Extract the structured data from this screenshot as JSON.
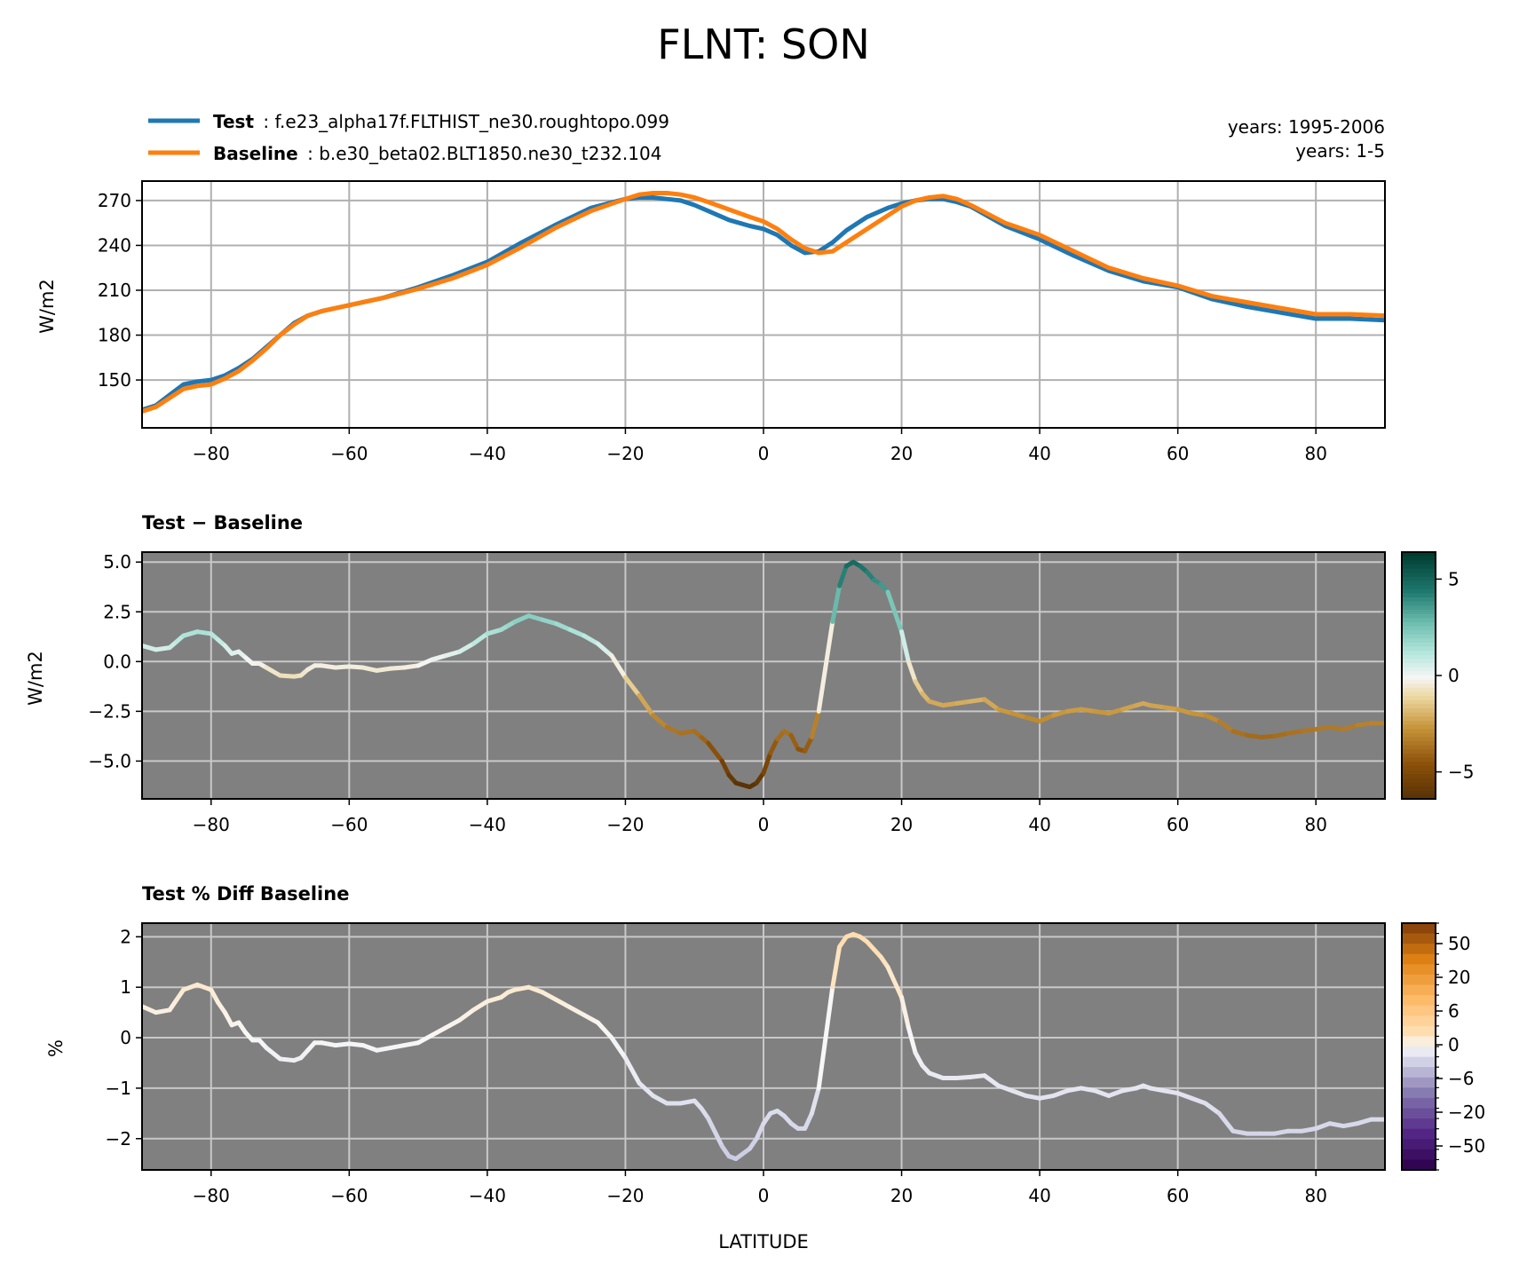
{
  "title": "FLNT: SON",
  "legend": {
    "test_label": "Test",
    "test_case": ": f.e23_alpha17f.FLTHIST_ne30.roughtopo.099",
    "test_color": "#1f77b4",
    "test_years": "years: 1995-2006",
    "base_label": "Baseline",
    "base_case": ": b.e30_beta02.BLT1850.ne30_t232.104",
    "base_color": "#ff7f0e",
    "base_years": "years: 1-5"
  },
  "panels": {
    "p1": {
      "ylabel": "W/m2"
    },
    "p2": {
      "title": "Test − Baseline",
      "ylabel": "W/m2"
    },
    "p3": {
      "title": "Test % Diff Baseline",
      "ylabel": "%",
      "xlabel": "LATITUDE"
    }
  },
  "colorbars": {
    "cb2": {
      "ticks": [
        "5",
        "0",
        "−5"
      ]
    },
    "cb3": {
      "ticks": [
        "50",
        "20",
        "6",
        "0",
        "−6",
        "−20",
        "−50"
      ]
    }
  },
  "chart_data": [
    {
      "type": "line",
      "xlim": [
        -90,
        90
      ],
      "ylim": [
        118,
        283
      ],
      "xticks": [
        -80,
        -60,
        -40,
        -20,
        0,
        20,
        40,
        60,
        80
      ],
      "yticks": [
        150,
        180,
        210,
        240,
        270
      ],
      "grid": true,
      "series": [
        {
          "name": "Test",
          "color": "#1f77b4",
          "x": [
            -90,
            -88,
            -86,
            -84,
            -82,
            -80,
            -78,
            -76,
            -74,
            -72,
            -70,
            -68,
            -66,
            -64,
            -62,
            -60,
            -55,
            -50,
            -45,
            -40,
            -35,
            -30,
            -25,
            -20,
            -18,
            -16,
            -14,
            -12,
            -10,
            -8,
            -5,
            -2,
            0,
            2,
            4,
            6,
            8,
            10,
            12,
            15,
            18,
            20,
            22,
            24,
            26,
            28,
            30,
            35,
            40,
            45,
            50,
            55,
            60,
            65,
            70,
            75,
            80,
            85,
            90
          ],
          "y": [
            130,
            133,
            140,
            147,
            149,
            150,
            153,
            158,
            164,
            172,
            180,
            188,
            193,
            196,
            198,
            200,
            205,
            212,
            220,
            229,
            242,
            254,
            265,
            271,
            272,
            272,
            271,
            270,
            267,
            263,
            257,
            253,
            251,
            247,
            240,
            235,
            236,
            242,
            250,
            259,
            265,
            268,
            270,
            271,
            271,
            269,
            266,
            253,
            244,
            233,
            223,
            216,
            212,
            204,
            199,
            195,
            191,
            191,
            190
          ]
        },
        {
          "name": "Baseline",
          "color": "#ff7f0e",
          "x": [
            -90,
            -88,
            -86,
            -84,
            -82,
            -80,
            -78,
            -76,
            -74,
            -72,
            -70,
            -68,
            -66,
            -64,
            -62,
            -60,
            -55,
            -50,
            -45,
            -40,
            -35,
            -30,
            -25,
            -20,
            -18,
            -16,
            -14,
            -12,
            -10,
            -8,
            -5,
            -2,
            0,
            2,
            4,
            6,
            8,
            10,
            12,
            15,
            18,
            20,
            22,
            24,
            26,
            28,
            30,
            35,
            40,
            45,
            50,
            55,
            60,
            65,
            70,
            75,
            80,
            85,
            90
          ],
          "y": [
            129,
            132,
            138,
            144,
            146,
            147,
            151,
            156,
            163,
            171,
            180,
            187,
            193,
            196,
            198,
            200,
            205,
            211,
            218,
            227,
            239,
            252,
            263,
            271,
            274,
            275,
            275,
            274,
            272,
            269,
            264,
            259,
            256,
            251,
            244,
            238,
            235,
            236,
            242,
            251,
            260,
            266,
            270,
            272,
            273,
            271,
            267,
            255,
            247,
            236,
            225,
            218,
            213,
            206,
            202,
            198,
            194,
            194,
            193
          ]
        }
      ]
    },
    {
      "type": "line",
      "xlim": [
        -90,
        90
      ],
      "ylim": [
        -6.9,
        5.5
      ],
      "xticks": [
        -80,
        -60,
        -40,
        -20,
        0,
        20,
        40,
        60,
        80
      ],
      "yticks": [
        5.0,
        2.5,
        0.0,
        -2.5,
        -5.0
      ],
      "ytick_labels": [
        "5.0",
        "2.5",
        "0.0",
        "−2.5",
        "−5.0"
      ],
      "grid": true,
      "background": "#808080",
      "colormap": "BrBG",
      "clim": [
        -6.4,
        6.4
      ],
      "series": [
        {
          "x": [
            -90,
            -88,
            -86,
            -85,
            -84,
            -82,
            -80,
            -79,
            -78,
            -77,
            -76,
            -75,
            -74,
            -73,
            -72,
            -70,
            -68,
            -67,
            -66,
            -65,
            -64,
            -62,
            -60,
            -58,
            -56,
            -54,
            -52,
            -50,
            -48,
            -46,
            -44,
            -42,
            -40,
            -38,
            -37,
            -36,
            -34,
            -32,
            -30,
            -28,
            -26,
            -24,
            -22,
            -20,
            -18,
            -16,
            -14,
            -12,
            -10,
            -9,
            -8,
            -6,
            -5,
            -4,
            -2,
            -1,
            0,
            1,
            2,
            3,
            4,
            5,
            6,
            7,
            8,
            10,
            11,
            12,
            13,
            14,
            15,
            16,
            17,
            18,
            20,
            21,
            22,
            23,
            24,
            26,
            28,
            30,
            32,
            34,
            36,
            38,
            40,
            42,
            44,
            46,
            48,
            50,
            52,
            54,
            55,
            56,
            58,
            60,
            62,
            64,
            66,
            68,
            70,
            72,
            74,
            76,
            78,
            80,
            82,
            84,
            86,
            88,
            90
          ],
          "y": [
            0.8,
            0.6,
            0.7,
            1.0,
            1.3,
            1.5,
            1.4,
            1.1,
            0.8,
            0.4,
            0.5,
            0.2,
            -0.1,
            -0.1,
            -0.3,
            -0.7,
            -0.75,
            -0.7,
            -0.4,
            -0.2,
            -0.2,
            -0.3,
            -0.25,
            -0.3,
            -0.45,
            -0.35,
            -0.3,
            -0.2,
            0.1,
            0.3,
            0.5,
            0.9,
            1.4,
            1.6,
            1.8,
            2.0,
            2.3,
            2.1,
            1.9,
            1.6,
            1.3,
            0.9,
            0.3,
            -0.8,
            -1.7,
            -2.7,
            -3.3,
            -3.6,
            -3.5,
            -3.8,
            -4.1,
            -5.0,
            -5.7,
            -6.1,
            -6.3,
            -6.1,
            -5.6,
            -4.6,
            -3.9,
            -3.5,
            -3.7,
            -4.4,
            -4.5,
            -3.8,
            -2.5,
            2.0,
            3.8,
            4.8,
            5.0,
            4.8,
            4.5,
            4.1,
            3.9,
            3.5,
            1.5,
            0.0,
            -1.0,
            -1.6,
            -2.0,
            -2.2,
            -2.1,
            -2.0,
            -1.9,
            -2.4,
            -2.6,
            -2.8,
            -3.0,
            -2.7,
            -2.5,
            -2.4,
            -2.5,
            -2.6,
            -2.4,
            -2.2,
            -2.1,
            -2.2,
            -2.3,
            -2.4,
            -2.6,
            -2.7,
            -3.0,
            -3.5,
            -3.7,
            -3.8,
            -3.75,
            -3.6,
            -3.5,
            -3.4,
            -3.3,
            -3.4,
            -3.2,
            -3.1,
            -3.1
          ]
        }
      ]
    },
    {
      "type": "line",
      "xlim": [
        -90,
        90
      ],
      "ylim": [
        -2.62,
        2.27
      ],
      "xticks": [
        -80,
        -60,
        -40,
        -20,
        0,
        20,
        40,
        60,
        80
      ],
      "yticks": [
        2,
        1,
        0,
        -1,
        -2
      ],
      "ytick_labels": [
        "2",
        "1",
        "0",
        "−1",
        "−2"
      ],
      "grid": true,
      "background": "#808080",
      "colormap": "PuOr_r",
      "series": [
        {
          "x": [
            -90,
            -88,
            -86,
            -85,
            -84,
            -82,
            -80,
            -79,
            -78,
            -77,
            -76,
            -75,
            -74,
            -73,
            -72,
            -70,
            -68,
            -67,
            -66,
            -65,
            -64,
            -62,
            -60,
            -58,
            -56,
            -54,
            -52,
            -50,
            -48,
            -46,
            -44,
            -42,
            -40,
            -38,
            -37,
            -36,
            -34,
            -32,
            -30,
            -28,
            -26,
            -24,
            -22,
            -20,
            -18,
            -16,
            -14,
            -12,
            -10,
            -9,
            -8,
            -6,
            -5,
            -4,
            -2,
            -1,
            0,
            1,
            2,
            3,
            4,
            5,
            6,
            7,
            8,
            10,
            11,
            12,
            13,
            14,
            15,
            16,
            17,
            18,
            20,
            21,
            22,
            23,
            24,
            26,
            28,
            30,
            32,
            34,
            36,
            38,
            40,
            42,
            44,
            46,
            48,
            50,
            52,
            54,
            55,
            56,
            58,
            60,
            62,
            64,
            66,
            68,
            70,
            72,
            74,
            76,
            78,
            80,
            82,
            84,
            86,
            88,
            90
          ],
          "y": [
            0.62,
            0.5,
            0.55,
            0.75,
            0.95,
            1.05,
            0.95,
            0.7,
            0.5,
            0.25,
            0.3,
            0.1,
            -0.05,
            -0.05,
            -0.2,
            -0.42,
            -0.45,
            -0.4,
            -0.25,
            -0.1,
            -0.1,
            -0.15,
            -0.12,
            -0.15,
            -0.25,
            -0.2,
            -0.15,
            -0.1,
            0.05,
            0.2,
            0.35,
            0.55,
            0.72,
            0.8,
            0.9,
            0.95,
            1.0,
            0.9,
            0.75,
            0.6,
            0.45,
            0.3,
            0.0,
            -0.4,
            -0.9,
            -1.15,
            -1.3,
            -1.3,
            -1.25,
            -1.4,
            -1.6,
            -2.15,
            -2.35,
            -2.4,
            -2.2,
            -2.0,
            -1.7,
            -1.5,
            -1.45,
            -1.55,
            -1.7,
            -1.8,
            -1.8,
            -1.5,
            -1.0,
            1.0,
            1.8,
            2.0,
            2.05,
            2.0,
            1.9,
            1.75,
            1.6,
            1.4,
            0.8,
            0.2,
            -0.3,
            -0.55,
            -0.7,
            -0.8,
            -0.8,
            -0.78,
            -0.75,
            -0.95,
            -1.05,
            -1.15,
            -1.2,
            -1.15,
            -1.05,
            -1.0,
            -1.05,
            -1.15,
            -1.05,
            -1.0,
            -0.95,
            -1.0,
            -1.05,
            -1.1,
            -1.2,
            -1.3,
            -1.5,
            -1.85,
            -1.9,
            -1.9,
            -1.9,
            -1.85,
            -1.85,
            -1.8,
            -1.7,
            -1.75,
            -1.7,
            -1.62,
            -1.62
          ]
        }
      ]
    }
  ]
}
